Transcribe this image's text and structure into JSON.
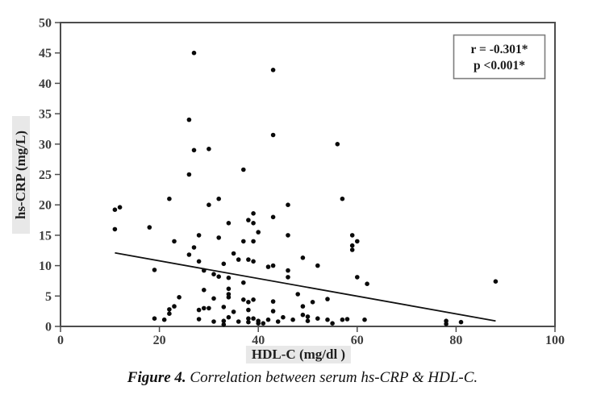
{
  "colors": {
    "background": "#ffffff",
    "axis": "#4d4d4d",
    "tick_text": "#3d3d3d",
    "point": "#0a0a0a",
    "trend_line": "#111111",
    "legend_border": "#7d7d7d",
    "label_highlight": "#e8e8e8"
  },
  "chart_data": {
    "type": "scatter",
    "title": "",
    "xlabel": "HDL-C (mg/dl )",
    "ylabel": "hs-CRP  (mg/L)",
    "xlim": [
      0,
      100
    ],
    "ylim": [
      0,
      50
    ],
    "x_ticks": [
      0,
      20,
      40,
      60,
      80,
      100
    ],
    "y_ticks": [
      0,
      5,
      10,
      15,
      20,
      25,
      30,
      35,
      40,
      45,
      50
    ],
    "grid": false,
    "legend_position": "top-right",
    "annotation": {
      "line1": "r = -0.301*",
      "line2": "p <0.001*"
    },
    "trendline": {
      "x1": 11,
      "y1": 12.1,
      "x2": 88,
      "y2": 0.9
    },
    "points": [
      [
        27,
        45
      ],
      [
        43,
        42.2
      ],
      [
        26,
        34
      ],
      [
        43,
        31.5
      ],
      [
        27,
        29
      ],
      [
        30,
        29.2
      ],
      [
        26,
        25
      ],
      [
        37,
        25.8
      ],
      [
        56,
        30
      ],
      [
        22,
        21
      ],
      [
        11,
        19.2
      ],
      [
        12,
        19.6
      ],
      [
        11,
        16
      ],
      [
        18,
        16.3
      ],
      [
        23,
        14
      ],
      [
        27,
        13
      ],
      [
        32,
        21
      ],
      [
        30,
        20
      ],
      [
        46,
        20
      ],
      [
        39,
        18.6
      ],
      [
        38,
        17.5
      ],
      [
        43,
        18
      ],
      [
        39,
        17
      ],
      [
        34,
        17
      ],
      [
        40,
        15.5
      ],
      [
        46,
        15
      ],
      [
        28,
        15
      ],
      [
        32,
        14.6
      ],
      [
        37,
        14
      ],
      [
        39,
        14
      ],
      [
        57,
        21
      ],
      [
        59,
        15
      ],
      [
        60,
        14
      ],
      [
        59,
        13.3
      ],
      [
        19,
        9.3
      ],
      [
        26,
        11.8
      ],
      [
        24,
        4.8
      ],
      [
        23,
        3.3
      ],
      [
        22,
        2.8
      ],
      [
        22,
        2.1
      ],
      [
        19,
        1.3
      ],
      [
        21,
        1.1
      ],
      [
        35,
        12
      ],
      [
        28,
        10.7
      ],
      [
        33,
        10.3
      ],
      [
        36,
        11
      ],
      [
        38,
        11
      ],
      [
        39,
        10.7
      ],
      [
        49,
        11.3
      ],
      [
        42,
        9.8
      ],
      [
        43,
        10
      ],
      [
        52,
        10
      ],
      [
        29,
        9.2
      ],
      [
        31,
        8.6
      ],
      [
        32,
        8.2
      ],
      [
        34,
        8
      ],
      [
        37,
        7.2
      ],
      [
        46,
        9.2
      ],
      [
        46,
        8.1
      ],
      [
        29,
        6
      ],
      [
        34,
        6.2
      ],
      [
        34,
        5.3
      ],
      [
        48,
        5.3
      ],
      [
        31,
        4.6
      ],
      [
        34,
        4.8
      ],
      [
        37,
        4.4
      ],
      [
        38,
        4
      ],
      [
        39,
        4.4
      ],
      [
        43,
        4.1
      ],
      [
        51,
        4
      ],
      [
        28,
        2.7
      ],
      [
        29,
        3
      ],
      [
        30,
        3
      ],
      [
        33,
        3.2
      ],
      [
        35,
        2.4
      ],
      [
        38,
        2.7
      ],
      [
        43,
        2.5
      ],
      [
        49,
        3.3
      ],
      [
        28,
        1.2
      ],
      [
        31,
        0.8
      ],
      [
        33,
        0.9
      ],
      [
        33,
        0.3
      ],
      [
        34,
        1.5
      ],
      [
        36,
        0.8
      ],
      [
        38,
        1.3
      ],
      [
        38,
        0.7
      ],
      [
        39,
        1.3
      ],
      [
        40,
        0.5
      ],
      [
        40,
        0.9
      ],
      [
        41,
        0.5
      ],
      [
        42,
        1.1
      ],
      [
        44,
        0.8
      ],
      [
        45,
        1.5
      ],
      [
        47,
        1.1
      ],
      [
        49,
        1.9
      ],
      [
        50,
        1.6
      ],
      [
        50,
        0.9
      ],
      [
        59,
        12.6
      ],
      [
        60,
        8.1
      ],
      [
        62,
        7
      ],
      [
        54,
        4.5
      ],
      [
        52,
        1.3
      ],
      [
        54,
        1.1
      ],
      [
        55,
        0.5
      ],
      [
        57,
        1.1
      ],
      [
        58,
        1.2
      ],
      [
        61.5,
        1.1
      ],
      [
        88,
        7.4
      ],
      [
        78,
        0.9
      ],
      [
        78,
        0.4
      ],
      [
        81,
        0.7
      ]
    ]
  },
  "caption": {
    "label": "Figure 4.",
    "text": "Correlation between serum hs-CRP & HDL-C."
  }
}
